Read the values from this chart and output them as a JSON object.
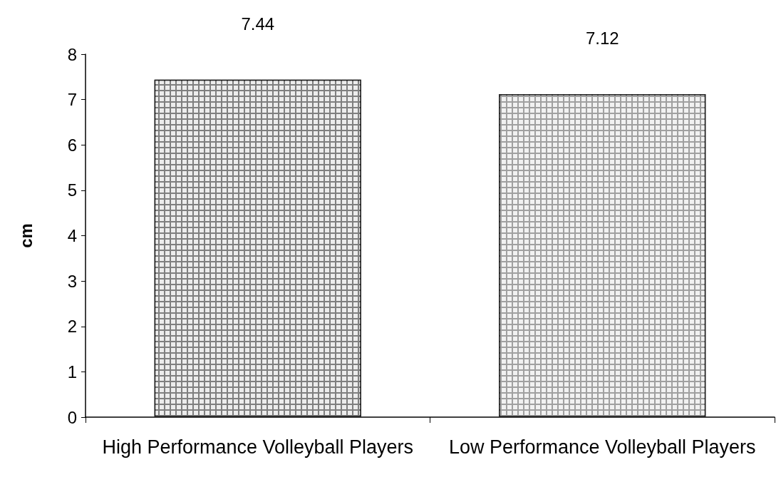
{
  "chart_data": {
    "type": "bar",
    "ylabel": "cm",
    "categories": [
      "High Performance Volleyball Players",
      "Low Performance Volleyball Players"
    ],
    "values": [
      7.44,
      7.12
    ],
    "colors": [
      "#7f7f7f",
      "#a0a0a0"
    ],
    "ylim": [
      0,
      8
    ],
    "yticks": [
      0,
      1,
      2,
      3,
      4,
      5,
      6,
      7,
      8
    ],
    "grid": false,
    "data_labels": true
  }
}
